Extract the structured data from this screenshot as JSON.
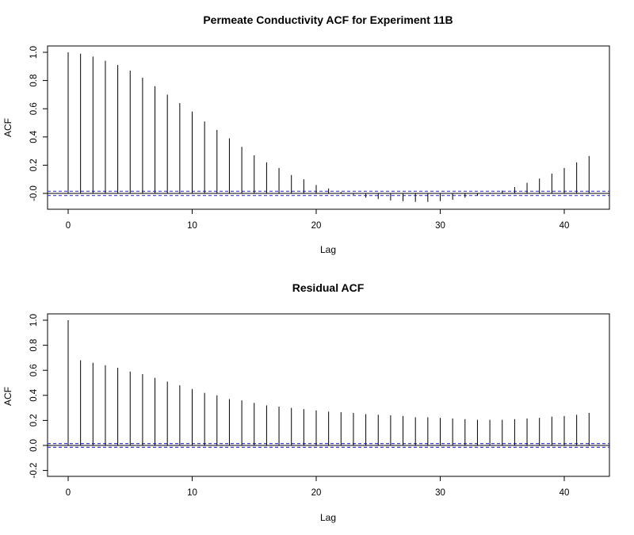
{
  "chart_data": [
    {
      "type": "bar",
      "title": "Permeate Conductivity ACF for Experiment 11B",
      "xlabel": "Lag",
      "ylabel": "ACF",
      "xlim": [
        0,
        42
      ],
      "ylim": [
        -0.1,
        1.0
      ],
      "x_ticks": [
        "0",
        "10",
        "20",
        "30",
        "40"
      ],
      "y_ticks": [
        "-0.0",
        "0.2",
        "0.4",
        "0.6",
        "0.8",
        "1.0"
      ],
      "y_tick_values": [
        0.0,
        0.2,
        0.4,
        0.6,
        0.8,
        1.0
      ],
      "x_tick_values": [
        0,
        10,
        20,
        30,
        40
      ],
      "confidence_band": 0.015,
      "band_color": "#3b3bd6",
      "x": [
        0,
        1,
        2,
        3,
        4,
        5,
        6,
        7,
        8,
        9,
        10,
        11,
        12,
        13,
        14,
        15,
        16,
        17,
        18,
        19,
        20,
        21,
        22,
        23,
        24,
        25,
        26,
        27,
        28,
        29,
        30,
        31,
        32,
        33,
        34,
        35,
        36,
        37,
        38,
        39,
        40,
        41,
        42
      ],
      "values": [
        1.0,
        0.99,
        0.97,
        0.94,
        0.91,
        0.87,
        0.82,
        0.76,
        0.7,
        0.64,
        0.58,
        0.51,
        0.45,
        0.39,
        0.33,
        0.27,
        0.22,
        0.18,
        0.13,
        0.1,
        0.06,
        0.035,
        0.01,
        -0.01,
        -0.03,
        -0.04,
        -0.05,
        -0.055,
        -0.06,
        -0.06,
        -0.055,
        -0.045,
        -0.03,
        -0.015,
        0.005,
        0.02,
        0.045,
        0.075,
        0.105,
        0.14,
        0.18,
        0.22,
        0.265
      ]
    },
    {
      "type": "bar",
      "title": "Residual ACF",
      "xlabel": "Lag",
      "ylabel": "ACF",
      "xlim": [
        0,
        42
      ],
      "ylim": [
        -0.25,
        1.0
      ],
      "x_ticks": [
        "0",
        "10",
        "20",
        "30",
        "40"
      ],
      "y_ticks": [
        "-0.2",
        "0.0",
        "0.2",
        "0.4",
        "0.6",
        "0.8",
        "1.0"
      ],
      "y_tick_values": [
        -0.2,
        0.0,
        0.2,
        0.4,
        0.6,
        0.8,
        1.0
      ],
      "x_tick_values": [
        0,
        10,
        20,
        30,
        40
      ],
      "confidence_band": 0.015,
      "band_color": "#3b3bd6",
      "x": [
        0,
        1,
        2,
        3,
        4,
        5,
        6,
        7,
        8,
        9,
        10,
        11,
        12,
        13,
        14,
        15,
        16,
        17,
        18,
        19,
        20,
        21,
        22,
        23,
        24,
        25,
        26,
        27,
        28,
        29,
        30,
        31,
        32,
        33,
        34,
        35,
        36,
        37,
        38,
        39,
        40,
        41,
        42
      ],
      "values": [
        1.0,
        0.68,
        0.66,
        0.64,
        0.62,
        0.59,
        0.57,
        0.54,
        0.51,
        0.48,
        0.45,
        0.42,
        0.4,
        0.37,
        0.36,
        0.34,
        0.32,
        0.31,
        0.3,
        0.29,
        0.28,
        0.27,
        0.265,
        0.26,
        0.25,
        0.245,
        0.24,
        0.235,
        0.225,
        0.225,
        0.22,
        0.215,
        0.21,
        0.205,
        0.205,
        0.205,
        0.21,
        0.215,
        0.22,
        0.23,
        0.235,
        0.245,
        0.26
      ]
    }
  ]
}
